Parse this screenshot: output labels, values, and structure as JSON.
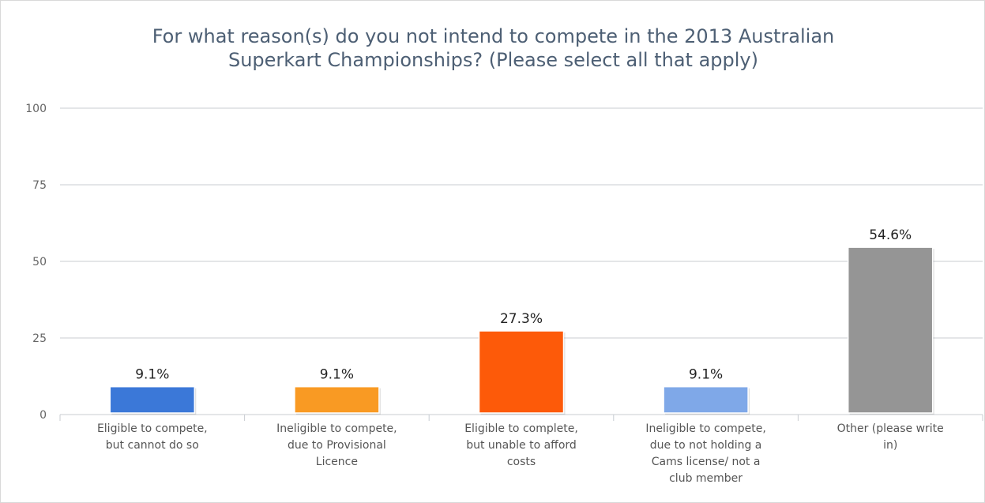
{
  "chart_data": {
    "type": "bar",
    "title": "For what reason(s) do you not intend to compete in the 2013 Australian\nSuperkart Championships? (Please select all that apply)",
    "xlabel": "",
    "ylabel": "",
    "ylim": [
      0,
      100
    ],
    "yticks": [
      0,
      25,
      50,
      75,
      100
    ],
    "grid": true,
    "categories": [
      [
        "Eligible to compete,",
        "but cannot do so"
      ],
      [
        "Ineligible to compete,",
        "due to Provisional",
        "Licence"
      ],
      [
        "Eligible to complete,",
        "but unable to afford",
        "costs"
      ],
      [
        "Ineligible to compete,",
        "due to not holding a",
        "Cams license/ not a",
        "club member"
      ],
      [
        "Other (please write",
        "in)"
      ]
    ],
    "values": [
      9.1,
      9.1,
      27.3,
      9.1,
      54.6
    ],
    "data_labels": [
      "9.1%",
      "9.1%",
      "27.3%",
      "9.1%",
      "54.6%"
    ],
    "colors": [
      "#3b78d8",
      "#f99a23",
      "#fd5a09",
      "#7fa8e8",
      "#959595"
    ]
  }
}
